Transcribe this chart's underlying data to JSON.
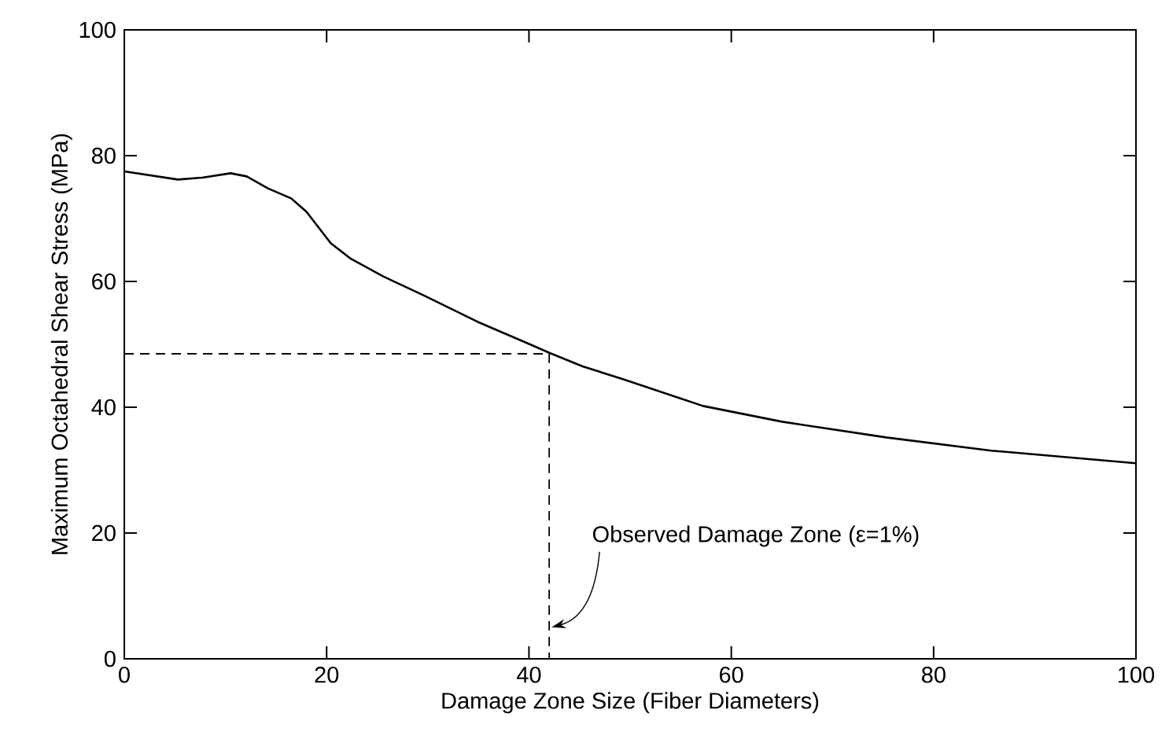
{
  "chart_data": {
    "type": "line",
    "xlabel": "Damage Zone Size (Fiber Diameters)",
    "ylabel": "Maximum Octahedral Shear Stress (MPa)",
    "xlim": [
      0,
      100
    ],
    "ylim": [
      0,
      100
    ],
    "xticks": [
      0,
      20,
      40,
      60,
      80,
      100
    ],
    "yticks": [
      0,
      20,
      40,
      60,
      80,
      100
    ],
    "marker": "none",
    "series": [
      {
        "color": "#000000",
        "line_style": "solid",
        "x": [
          0,
          5.3,
          7.7,
          10.5,
          12.1,
          14.2,
          16.5,
          18.0,
          20.4,
          22.4,
          25.6,
          29.7,
          34.9,
          40.1,
          42.1,
          45.3,
          49.4,
          57.2,
          65.0,
          75.3,
          85.7,
          100
        ],
        "values": [
          77.5,
          76.2,
          76.5,
          77.2,
          76.7,
          74.8,
          73.2,
          71.1,
          66.1,
          63.6,
          60.8,
          57.7,
          53.6,
          50.0,
          48.6,
          46.5,
          44.4,
          40.2,
          37.7,
          35.2,
          33.1,
          31.1
        ]
      },
      {
        "color": "#000000",
        "line_style": "dashed",
        "x": [
          0,
          42,
          42
        ],
        "values": [
          48.5,
          48.5,
          0
        ]
      }
    ],
    "annotations": [
      {
        "text": "Observed Damage Zone (ε=1%)",
        "x": 42,
        "y": 5
      }
    ]
  }
}
